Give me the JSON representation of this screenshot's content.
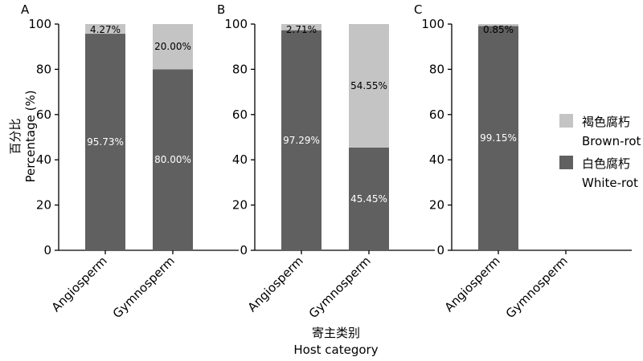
{
  "colors": {
    "white_rot": "#606060",
    "brown_rot": "#c4c4c4",
    "axis": "#000000",
    "label_on_dark": "#ffffff",
    "label_on_light": "#000000"
  },
  "y_axis_title": {
    "zh": "百分比",
    "en": "Percentage (%)"
  },
  "x_axis_title": {
    "zh": "寄主类别",
    "en": "Host category"
  },
  "legend": [
    {
      "key": "brown_rot",
      "zh": "褐色腐朽",
      "en": "Brown-rot",
      "color": "#c4c4c4"
    },
    {
      "key": "white_rot",
      "zh": "白色腐朽",
      "en": "White-rot",
      "color": "#606060"
    }
  ],
  "chart_data": [
    {
      "type": "bar",
      "stacked": true,
      "panel": "A",
      "categories": [
        "Angiosperm",
        "Gymnosperm"
      ],
      "ylim": [
        0,
        100
      ],
      "yticks": [
        "0",
        "20",
        "40",
        "60",
        "80",
        "100"
      ],
      "series": [
        {
          "name": "White-rot",
          "values": [
            95.73,
            80.0
          ],
          "labels": [
            "95.73%",
            "80.00%"
          ]
        },
        {
          "name": "Brown-rot",
          "values": [
            4.27,
            20.0
          ],
          "labels": [
            "4.27%",
            "20.00%"
          ]
        }
      ]
    },
    {
      "type": "bar",
      "stacked": true,
      "panel": "B",
      "categories": [
        "Angiosperm",
        "Gymnosperm"
      ],
      "ylim": [
        0,
        100
      ],
      "yticks": [
        "0",
        "20",
        "40",
        "60",
        "80",
        "100"
      ],
      "series": [
        {
          "name": "White-rot",
          "values": [
            97.29,
            45.45
          ],
          "labels": [
            "97.29%",
            "45.45%"
          ]
        },
        {
          "name": "Brown-rot",
          "values": [
            2.71,
            54.55
          ],
          "labels": [
            "2.71%",
            "54.55%"
          ]
        }
      ]
    },
    {
      "type": "bar",
      "stacked": true,
      "panel": "C",
      "categories": [
        "Angiosperm",
        "Gymnosperm"
      ],
      "ylim": [
        0,
        100
      ],
      "yticks": [
        "0",
        "20",
        "40",
        "60",
        "80",
        "100"
      ],
      "series": [
        {
          "name": "White-rot",
          "values": [
            99.15,
            null
          ],
          "labels": [
            "99.15%",
            ""
          ]
        },
        {
          "name": "Brown-rot",
          "values": [
            0.85,
            null
          ],
          "labels": [
            "0.85%",
            ""
          ]
        }
      ]
    }
  ]
}
